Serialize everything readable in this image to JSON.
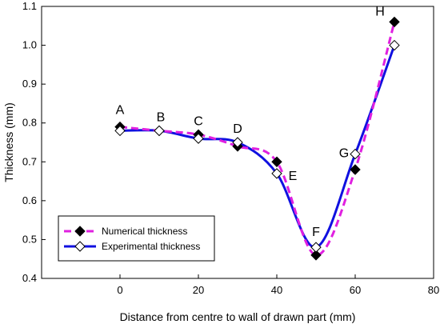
{
  "chart_data": {
    "type": "line",
    "title": "",
    "xlabel": "Distance from centre to wall of drawn part (mm)",
    "ylabel": "Thickness (mm)",
    "xlim": [
      -20,
      80
    ],
    "ylim": [
      0.4,
      1.1
    ],
    "x_ticks": [
      0,
      20,
      40,
      60,
      80
    ],
    "y_ticks": [
      0.4,
      0.5,
      0.6,
      0.7,
      0.8,
      0.9,
      1.0,
      1.1
    ],
    "x_tick_labels": [
      "0",
      "20",
      "40",
      "60",
      "80"
    ],
    "y_tick_labels": [
      "0.4",
      "0.5",
      "0.6",
      "0.7",
      "0.8",
      "0.9",
      "1.0",
      "1.1"
    ],
    "grid": false,
    "legend_position": "bottom-left",
    "series": [
      {
        "name": "Numerical thickness",
        "color": "#e020e0",
        "line_style": "dashed",
        "marker": "filled-diamond",
        "marker_color": "#000000",
        "x": [
          0,
          10,
          20,
          30,
          40,
          50,
          60,
          70
        ],
        "y": [
          0.79,
          0.78,
          0.77,
          0.74,
          0.7,
          0.46,
          0.68,
          1.06
        ]
      },
      {
        "name": "Experimental thickness",
        "color": "#1010e0",
        "line_style": "solid",
        "marker": "open-diamond",
        "marker_color": "#ffffff",
        "x": [
          0,
          10,
          20,
          30,
          40,
          50,
          60,
          70
        ],
        "y": [
          0.78,
          0.78,
          0.76,
          0.75,
          0.67,
          0.48,
          0.72,
          1.0
        ]
      }
    ],
    "point_labels": [
      {
        "text": "A",
        "x": 0,
        "y": 0.79
      },
      {
        "text": "B",
        "x": 10,
        "y": 0.78
      },
      {
        "text": "C",
        "x": 20,
        "y": 0.77
      },
      {
        "text": "D",
        "x": 30,
        "y": 0.75
      },
      {
        "text": "E",
        "x": 40,
        "y": 0.67
      },
      {
        "text": "F",
        "x": 50,
        "y": 0.48
      },
      {
        "text": "G",
        "x": 60,
        "y": 0.72
      },
      {
        "text": "H",
        "x": 70,
        "y": 1.06
      }
    ]
  }
}
